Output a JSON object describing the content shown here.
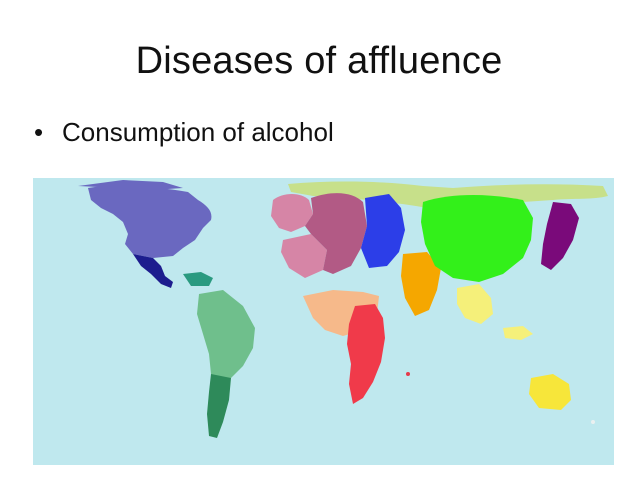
{
  "slide": {
    "title": "Diseases of affluence",
    "bullets": [
      {
        "text": "Consumption of alcohol"
      }
    ]
  },
  "map": {
    "type": "cartogram",
    "ocean_color": "#bfe8ee",
    "regions": [
      {
        "name": "north-america-usa-canada",
        "color": "#6a68c0"
      },
      {
        "name": "central-america-mexico",
        "color": "#1d1d8e"
      },
      {
        "name": "caribbean",
        "color": "#2a9a80"
      },
      {
        "name": "south-america",
        "color": "#6fbf8c"
      },
      {
        "name": "southern-cone",
        "color": "#2e8a5a"
      },
      {
        "name": "western-europe",
        "color": "#d685a6"
      },
      {
        "name": "central-europe",
        "color": "#b25a85"
      },
      {
        "name": "eastern-europe",
        "color": "#2c3ee8"
      },
      {
        "name": "north-africa",
        "color": "#f6b98a"
      },
      {
        "name": "sub-saharan-africa",
        "color": "#f03a4a"
      },
      {
        "name": "middle-east",
        "color": "#f5a700"
      },
      {
        "name": "russia-north",
        "color": "#c7e08a"
      },
      {
        "name": "china",
        "color": "#33f01a"
      },
      {
        "name": "southeast-asia",
        "color": "#f5f07a"
      },
      {
        "name": "japan",
        "color": "#7a0a7a"
      },
      {
        "name": "australia",
        "color": "#f7e63a"
      }
    ]
  }
}
